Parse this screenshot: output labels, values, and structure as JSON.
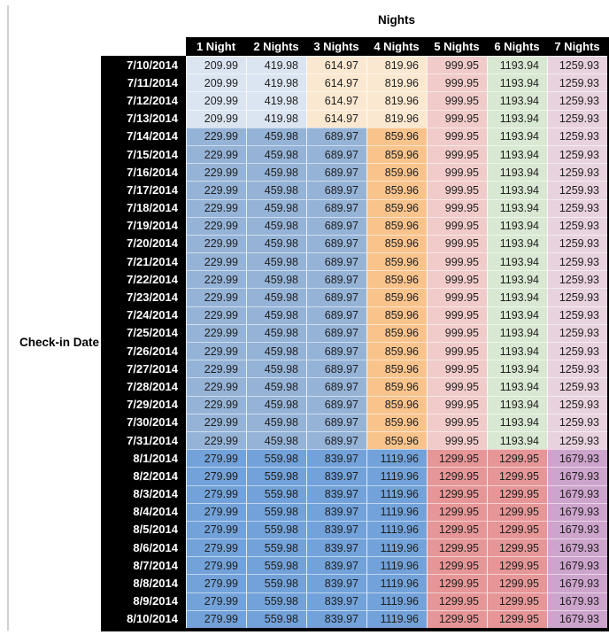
{
  "chart_data": {
    "type": "table",
    "title": "Nights",
    "row_axis_label": "Check-in Date",
    "columns": [
      "1 Night",
      "2 Nights",
      "3 Nights",
      "4 Nights",
      "5 Nights",
      "6 Nights",
      "7 Nights"
    ],
    "groups": {
      "early_july": {
        "values": [
          "209.99",
          "419.98",
          "614.97",
          "819.96",
          "999.95",
          "1193.94",
          "1259.93"
        ],
        "colors": [
          "#DBE5F1",
          "#DBE5F1",
          "#FBE8D0",
          "#FBE8D0",
          "#F0CBC9",
          "#D9E8D2",
          "#E8D2DE"
        ]
      },
      "mid_july": {
        "values": [
          "229.99",
          "459.98",
          "689.97",
          "859.96",
          "999.95",
          "1193.94",
          "1259.93"
        ],
        "colors": [
          "#95B3D7",
          "#95B3D7",
          "#95B3D7",
          "#F9C38C",
          "#F0CBC9",
          "#D9E8D2",
          "#E8D2DE"
        ]
      },
      "august": {
        "values": [
          "279.99",
          "559.98",
          "839.97",
          "1119.96",
          "1299.95",
          "1299.95",
          "1679.93"
        ],
        "colors": [
          "#72A2D9",
          "#72A2D9",
          "#72A2D9",
          "#72A2D9",
          "#E69697",
          "#E69697",
          "#CDA5CC"
        ]
      }
    },
    "rows": [
      {
        "date": "7/10/2014",
        "group": "early_july"
      },
      {
        "date": "7/11/2014",
        "group": "early_july"
      },
      {
        "date": "7/12/2014",
        "group": "early_july"
      },
      {
        "date": "7/13/2014",
        "group": "early_july"
      },
      {
        "date": "7/14/2014",
        "group": "mid_july"
      },
      {
        "date": "7/15/2014",
        "group": "mid_july"
      },
      {
        "date": "7/16/2014",
        "group": "mid_july"
      },
      {
        "date": "7/17/2014",
        "group": "mid_july"
      },
      {
        "date": "7/18/2014",
        "group": "mid_july"
      },
      {
        "date": "7/19/2014",
        "group": "mid_july"
      },
      {
        "date": "7/20/2014",
        "group": "mid_july"
      },
      {
        "date": "7/21/2014",
        "group": "mid_july"
      },
      {
        "date": "7/22/2014",
        "group": "mid_july"
      },
      {
        "date": "7/23/2014",
        "group": "mid_july"
      },
      {
        "date": "7/24/2014",
        "group": "mid_july"
      },
      {
        "date": "7/25/2014",
        "group": "mid_july"
      },
      {
        "date": "7/26/2014",
        "group": "mid_july"
      },
      {
        "date": "7/27/2014",
        "group": "mid_july"
      },
      {
        "date": "7/28/2014",
        "group": "mid_july"
      },
      {
        "date": "7/29/2014",
        "group": "mid_july"
      },
      {
        "date": "7/30/2014",
        "group": "mid_july"
      },
      {
        "date": "7/31/2014",
        "group": "mid_july"
      },
      {
        "date": "8/1/2014",
        "group": "august"
      },
      {
        "date": "8/2/2014",
        "group": "august"
      },
      {
        "date": "8/3/2014",
        "group": "august"
      },
      {
        "date": "8/4/2014",
        "group": "august"
      },
      {
        "date": "8/5/2014",
        "group": "august"
      },
      {
        "date": "8/6/2014",
        "group": "august"
      },
      {
        "date": "8/7/2014",
        "group": "august"
      },
      {
        "date": "8/8/2014",
        "group": "august"
      },
      {
        "date": "8/9/2014",
        "group": "august"
      },
      {
        "date": "8/10/2014",
        "group": "august"
      }
    ],
    "layout": {
      "header_bg": "#000000",
      "header_text": "#ffffff",
      "date_col_bg": "#000000",
      "date_col_text": "#ffffff",
      "cell_text": "#1f1f1f"
    }
  }
}
